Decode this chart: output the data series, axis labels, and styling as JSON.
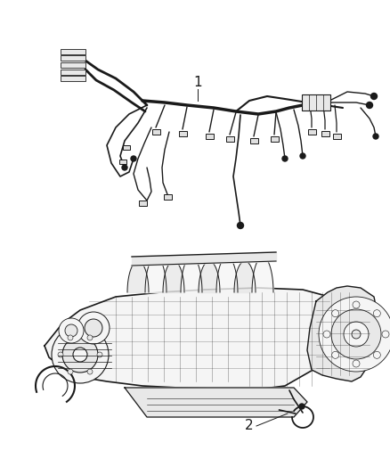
{
  "background_color": "#ffffff",
  "label1_text": "1",
  "label2_text": "2",
  "line_color": "#1a1a1a",
  "fig_width": 4.38,
  "fig_height": 5.33,
  "dpi": 100,
  "harness_color": "#222222",
  "engine_fill": "#f5f5f5",
  "engine_line": "#1a1a1a",
  "light_fill": "#e8e8e8",
  "mid_fill": "#d8d8d8"
}
